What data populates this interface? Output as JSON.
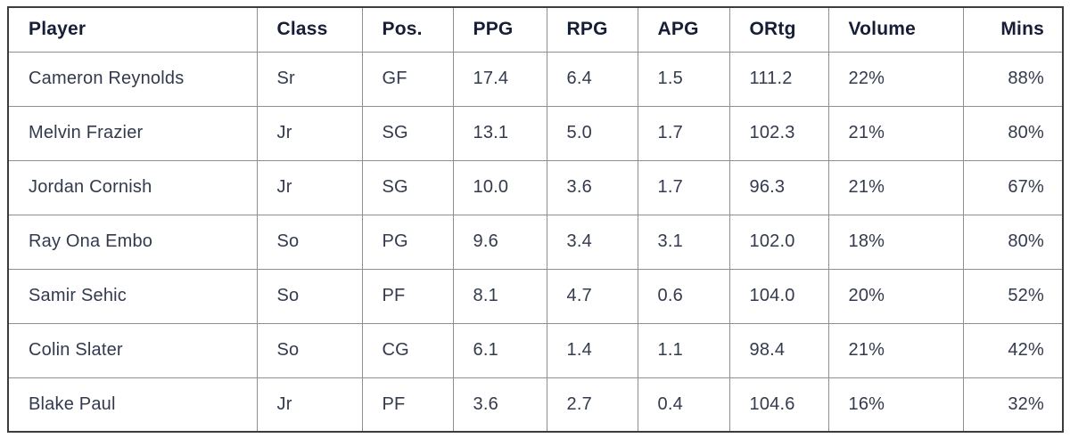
{
  "colors": {
    "header_text": "#161d36",
    "body_text": "#333a4d",
    "outer_border": "#3c3c3c",
    "inner_border": "#8f8f8f",
    "background": "#ffffff"
  },
  "chart_data": {
    "type": "table",
    "title": "",
    "columns": [
      {
        "key": "player",
        "label": "Player",
        "align": "left"
      },
      {
        "key": "class",
        "label": "Class",
        "align": "left"
      },
      {
        "key": "pos",
        "label": "Pos.",
        "align": "left"
      },
      {
        "key": "ppg",
        "label": "PPG",
        "align": "left"
      },
      {
        "key": "rpg",
        "label": "RPG",
        "align": "left"
      },
      {
        "key": "apg",
        "label": "APG",
        "align": "left"
      },
      {
        "key": "ortg",
        "label": "ORtg",
        "align": "left"
      },
      {
        "key": "volume",
        "label": "Volume",
        "align": "left"
      },
      {
        "key": "mins",
        "label": "Mins",
        "align": "right"
      }
    ],
    "rows": [
      {
        "player": "Cameron Reynolds",
        "class": "Sr",
        "pos": "GF",
        "ppg": "17.4",
        "rpg": "6.4",
        "apg": "1.5",
        "ortg": "111.2",
        "volume": "22%",
        "mins": "88%"
      },
      {
        "player": "Melvin Frazier",
        "class": "Jr",
        "pos": "SG",
        "ppg": "13.1",
        "rpg": "5.0",
        "apg": "1.7",
        "ortg": "102.3",
        "volume": "21%",
        "mins": "80%"
      },
      {
        "player": "Jordan Cornish",
        "class": "Jr",
        "pos": "SG",
        "ppg": "10.0",
        "rpg": "3.6",
        "apg": "1.7",
        "ortg": "96.3",
        "volume": "21%",
        "mins": "67%"
      },
      {
        "player": "Ray Ona Embo",
        "class": "So",
        "pos": "PG",
        "ppg": "9.6",
        "rpg": "3.4",
        "apg": "3.1",
        "ortg": "102.0",
        "volume": "18%",
        "mins": "80%"
      },
      {
        "player": "Samir Sehic",
        "class": "So",
        "pos": "PF",
        "ppg": "8.1",
        "rpg": "4.7",
        "apg": "0.6",
        "ortg": "104.0",
        "volume": "20%",
        "mins": "52%"
      },
      {
        "player": "Colin Slater",
        "class": "So",
        "pos": "CG",
        "ppg": "6.1",
        "rpg": "1.4",
        "apg": "1.1",
        "ortg": "98.4",
        "volume": "21%",
        "mins": "42%"
      },
      {
        "player": "Blake Paul",
        "class": "Jr",
        "pos": "PF",
        "ppg": "3.6",
        "rpg": "2.7",
        "apg": "0.4",
        "ortg": "104.6",
        "volume": "16%",
        "mins": "32%"
      }
    ]
  }
}
